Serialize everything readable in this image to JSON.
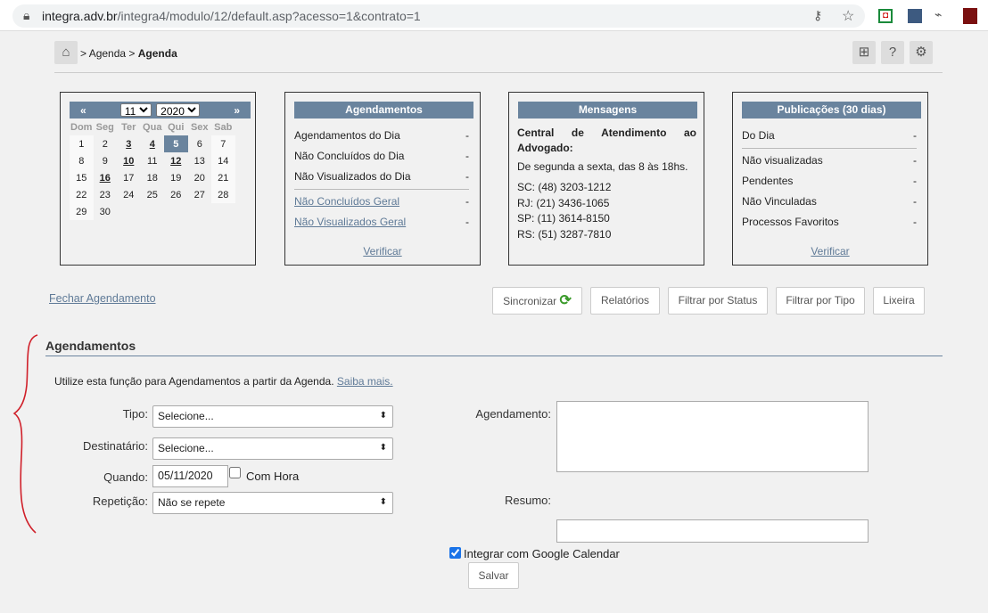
{
  "browser": {
    "url_host": "integra.adv.br",
    "url_path": "/integra4/modulo/12/default.asp?acesso=1&contrato=1",
    "icons": [
      "lock-icon",
      "key-icon",
      "star-icon",
      "extension-icon",
      "extension-icon",
      "extension-icon",
      "pdf-icon"
    ]
  },
  "breadcrumb": {
    "sep1": ">",
    "item1": "Agenda",
    "sep2": ">",
    "current": "Agenda"
  },
  "header_buttons": [
    "signpost-icon",
    "help-icon",
    "gear-icon"
  ],
  "calendar": {
    "prev": "«",
    "next": "»",
    "month": "11",
    "year": "2020",
    "weekdays": [
      "Dom",
      "Seg",
      "Ter",
      "Qua",
      "Qui",
      "Sex",
      "Sab"
    ],
    "weeks": [
      [
        "1",
        "2",
        "3",
        "4",
        "5",
        "6",
        "7"
      ],
      [
        "8",
        "9",
        "10",
        "11",
        "12",
        "13",
        "14"
      ],
      [
        "15",
        "16",
        "17",
        "18",
        "19",
        "20",
        "21"
      ],
      [
        "22",
        "23",
        "24",
        "25",
        "26",
        "27",
        "28"
      ],
      [
        "29",
        "30",
        "",
        "",
        "",
        "",
        ""
      ]
    ],
    "bold_days": [
      "3",
      "4",
      "10",
      "12",
      "16"
    ],
    "selected_day": "5"
  },
  "agendamentos": {
    "title": "Agendamentos",
    "rows": [
      {
        "label": "Agendamentos do Dia",
        "value": "-"
      },
      {
        "label": "Não Concluídos do Dia",
        "value": "-"
      },
      {
        "label": "Não Visualizados do Dia",
        "value": "-"
      }
    ],
    "links": [
      {
        "label": "Não Concluídos Geral",
        "value": "-"
      },
      {
        "label": "Não Visualizados Geral",
        "value": "-"
      }
    ],
    "verify": "Verificar"
  },
  "mensagens": {
    "title": "Mensagens",
    "heading": "Central de Atendimento ao Advogado:",
    "hours": "De segunda a sexta, das 8 às 18hs.",
    "phones": [
      "SC: (48) 3203-1212",
      "RJ: (21) 3436-1065",
      "SP: (11) 3614-8150",
      "RS: (51) 3287-7810"
    ]
  },
  "publicacoes": {
    "title": "Publicações (30 dias)",
    "first": {
      "label": "Do Dia",
      "value": "-"
    },
    "rows": [
      {
        "label": "Não visualizadas",
        "value": "-"
      },
      {
        "label": "Pendentes",
        "value": "-"
      },
      {
        "label": "Não Vinculadas",
        "value": "-"
      },
      {
        "label": "Processos Favoritos",
        "value": "-"
      }
    ],
    "verify": "Verificar"
  },
  "actions": {
    "close": "Fechar Agendamento",
    "sync": "Sincronizar",
    "reports": "Relatórios",
    "filter_status": "Filtrar por Status",
    "filter_type": "Filtrar por Tipo",
    "trash": "Lixeira"
  },
  "form": {
    "title": "Agendamentos",
    "intro": "Utilize esta função para Agendamentos a partir da Agenda.",
    "more": "Saiba mais.",
    "tipo_label": "Tipo:",
    "tipo_value": "Selecione...",
    "dest_label": "Destinatário:",
    "dest_value": "Selecione...",
    "quando_label": "Quando:",
    "quando_value": "05/11/2020",
    "com_hora": "Com Hora",
    "com_hora_checked": false,
    "rep_label": "Repetição:",
    "rep_value": "Não se repete",
    "agend_label": "Agendamento:",
    "agend_value": "",
    "resumo_label": "Resumo:",
    "resumo_value": "",
    "google": "Integrar com Google Calendar",
    "google_checked": true,
    "save": "Salvar"
  },
  "colors": {
    "header": "#6a849e",
    "link": "#5f7a97",
    "annotation": "#d0202a"
  }
}
